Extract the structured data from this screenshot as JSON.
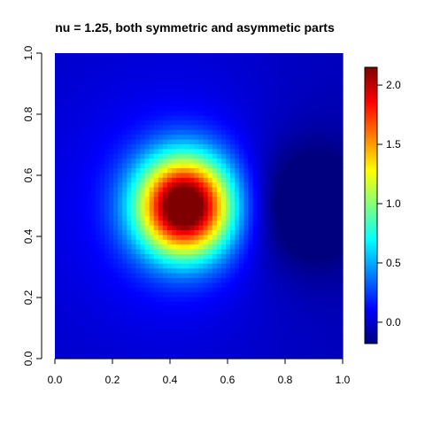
{
  "chart_data": {
    "type": "heatmap",
    "title": "nu = 1.25, both symmetric and asymmetic parts",
    "xlabel": "",
    "ylabel": "",
    "xlim": [
      0,
      1
    ],
    "ylim": [
      0,
      1
    ],
    "x_ticks": [
      "0.0",
      "0.2",
      "0.4",
      "0.6",
      "0.8",
      "1.0"
    ],
    "y_ticks": [
      "0.0",
      "0.2",
      "0.4",
      "0.6",
      "0.8",
      "1.0"
    ],
    "color_scale": {
      "range": [
        -0.18,
        2.15
      ],
      "ticks": [
        "0.0",
        "0.5",
        "1.0",
        "1.5",
        "2.0"
      ],
      "colors": [
        "#00007F",
        "#0000FF",
        "#007FFF",
        "#00FFFF",
        "#7FFF7F",
        "#FFFF00",
        "#FF7F00",
        "#FF0000",
        "#7F0000"
      ]
    },
    "surface": {
      "peak": {
        "x": 0.45,
        "y": 0.5,
        "value": 2.15
      },
      "trough": {
        "x": 0.87,
        "y": 0.5,
        "value": -0.18
      }
    }
  }
}
